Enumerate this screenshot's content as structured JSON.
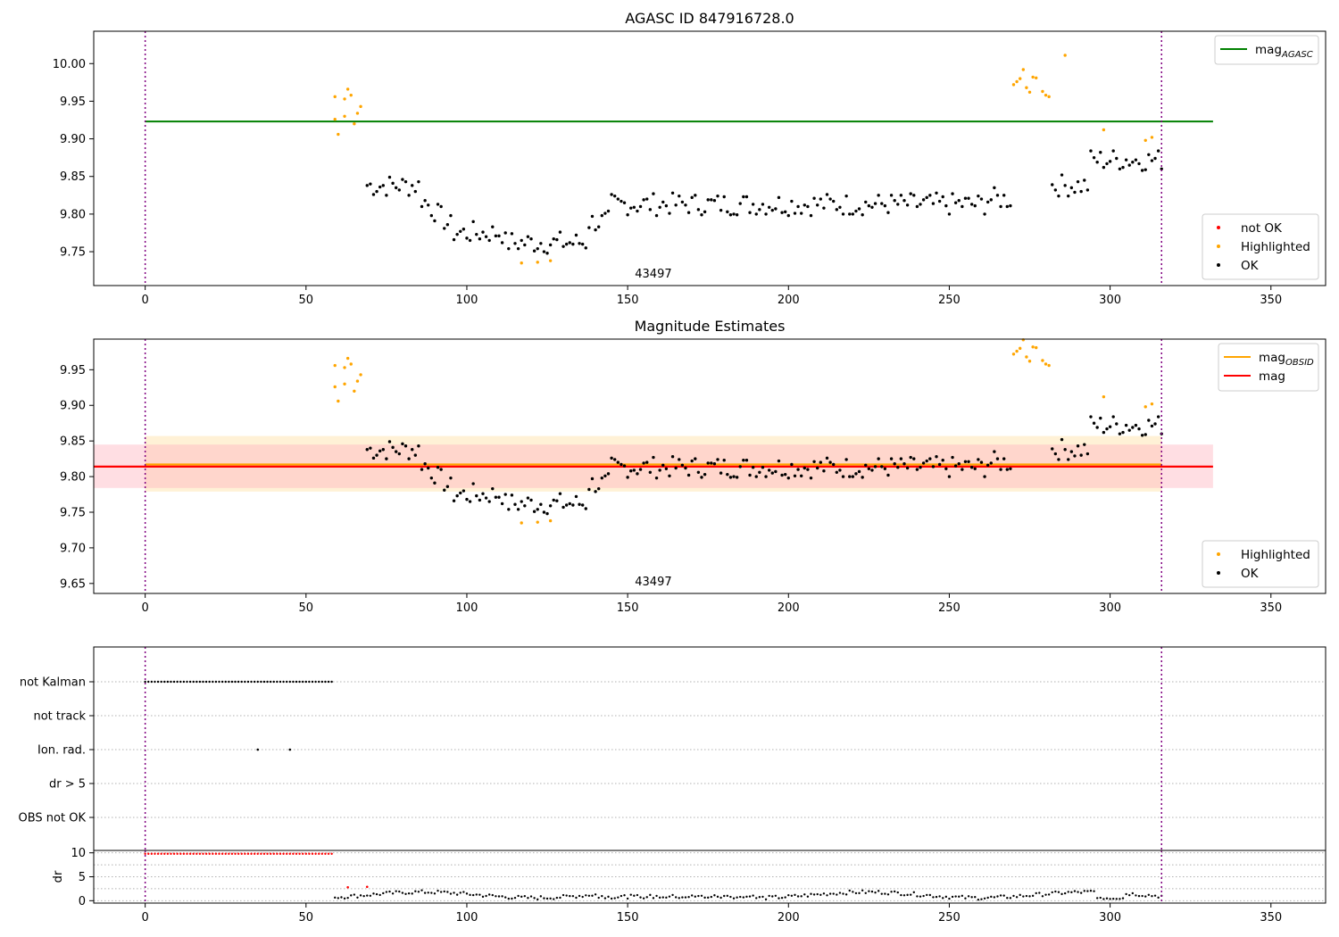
{
  "figure": {
    "background": "#ffffff",
    "colors": {
      "ok": "#000000",
      "highlighted": "#ffa500",
      "not_ok": "#ff0000",
      "mag_agasc": "#008000",
      "mag_obsid": "#ffa500",
      "mag": "#ff0000",
      "obs_boundary": "#800080",
      "band_obsid": "#ffe5b4",
      "band_mag": "#ffb6c1"
    }
  },
  "chart_data": [
    {
      "type": "scatter",
      "title": "AGASC ID 847916728.0",
      "obsid_label": "43497",
      "xlim": [
        -16,
        367
      ],
      "ylim": [
        9.705,
        10.043
      ],
      "xticks": [
        0,
        50,
        100,
        150,
        200,
        250,
        300,
        350
      ],
      "yticks": [
        9.75,
        9.8,
        9.85,
        9.9,
        9.95,
        10.0
      ],
      "ytick_labels": [
        "9.75",
        "9.80",
        "9.85",
        "9.90",
        "9.95",
        "10.00"
      ],
      "obs_boundaries": [
        0,
        316
      ],
      "hlines": [
        {
          "name": "mag$_{AGASC}$",
          "value": 9.923,
          "x": [
            0,
            332
          ],
          "color": "#008000"
        }
      ],
      "legend_lines": [
        {
          "name": "mag",
          "sub": "AGASC",
          "color": "#008000"
        }
      ],
      "legend_points": [
        {
          "name": "not OK",
          "color": "#ff0000"
        },
        {
          "name": "Highlighted",
          "color": "#ffa500"
        },
        {
          "name": "OK",
          "color": "#000000"
        }
      ],
      "legend_placement": [
        "upper right",
        "lower right"
      ],
      "grid": false
    },
    {
      "type": "scatter",
      "title": "Magnitude Estimates",
      "obsid_label": "43497",
      "xlim": [
        -16,
        367
      ],
      "ylim": [
        9.636,
        9.993
      ],
      "xticks": [
        0,
        50,
        100,
        150,
        200,
        250,
        300,
        350
      ],
      "yticks": [
        9.65,
        9.7,
        9.75,
        9.8,
        9.85,
        9.9,
        9.95
      ],
      "ytick_labels": [
        "9.65",
        "9.70",
        "9.75",
        "9.80",
        "9.85",
        "9.90",
        "9.95"
      ],
      "obs_boundaries": [
        0,
        316
      ],
      "hlines": [
        {
          "name": "mag$_{OBSID}$",
          "value": 9.817,
          "x": [
            0,
            316
          ],
          "color": "#ffa500"
        },
        {
          "name": "mag",
          "value": 9.814,
          "x": [
            -16,
            332
          ],
          "color": "#ff0000"
        }
      ],
      "bands": [
        {
          "x": [
            0,
            316
          ],
          "y": [
            9.779,
            9.857
          ],
          "color": "#ffe5b4",
          "opacity": 0.55
        },
        {
          "x": [
            -16,
            332
          ],
          "y": [
            9.784,
            9.845
          ],
          "color": "#ffb6c1",
          "opacity": 0.45
        }
      ],
      "legend_lines": [
        {
          "name": "mag",
          "sub": "OBSID",
          "color": "#ffa500"
        },
        {
          "name": "mag",
          "sub": "",
          "color": "#ff0000"
        }
      ],
      "legend_points": [
        {
          "name": "Highlighted",
          "color": "#ffa500"
        },
        {
          "name": "OK",
          "color": "#000000"
        }
      ],
      "legend_placement": [
        "upper right",
        "lower right"
      ],
      "grid": false
    },
    {
      "type": "scatter",
      "title": "",
      "xlim": [
        -16,
        367
      ],
      "categories": [
        "not Kalman",
        "not track",
        "Ion. rad.",
        "dr > 5",
        "OBS not OK"
      ],
      "flags": {
        "not_kalman": {
          "x_start": 0,
          "x_end": 58,
          "step": 1
        },
        "ion_rad": [
          35,
          45
        ]
      },
      "obs_boundaries": [
        0,
        316
      ],
      "grid": true
    },
    {
      "type": "scatter",
      "title": "",
      "ylabel": "dr",
      "xlim": [
        -16,
        367
      ],
      "ylim": [
        -0.5,
        10.5
      ],
      "xticks": [
        0,
        50,
        100,
        150,
        200,
        250,
        300,
        350
      ],
      "yticks": [
        0,
        5,
        10
      ],
      "ytick_labels": [
        "0",
        "5",
        "10"
      ],
      "obs_boundaries": [
        0,
        316
      ],
      "dr_capped": {
        "x_start": 0,
        "x_end": 58,
        "step": 1,
        "value": 9.8
      },
      "grid": true
    }
  ]
}
